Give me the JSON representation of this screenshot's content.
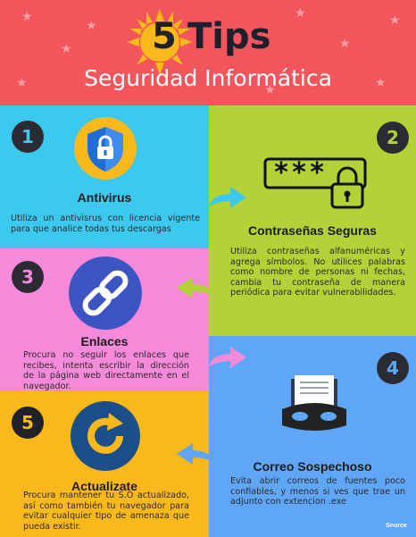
{
  "header": {
    "number": "5",
    "title": "Tips",
    "subtitle": "Seguridad Informática"
  },
  "tips": [
    {
      "number": "1",
      "title": "Antivirus",
      "text": "Utiliza un antivisrus con licencia vigente para que analice todas tus descargas",
      "icon": "shield-lock-icon"
    },
    {
      "number": "2",
      "title": "Contraseñas Seguras",
      "text": "Utiliza contraseñas alfanuméricas y agrega símbolos. No utilices palabras como nombre de personas ni fechas, cambia tu contraseña de manera periódica para evitar vulnerabilidades.",
      "icon": "password-lock-icon",
      "password_mask": "***"
    },
    {
      "number": "3",
      "title": "Enlaces",
      "text": "Procura no seguir los enlaces que recibes, intenta escribir la dirección de la página web directamente en el navegador.",
      "icon": "chain-link-icon"
    },
    {
      "number": "4",
      "title": "Correo Sospechoso",
      "text": "Evita abrir correos de fuentes poco confiables, y menos si ves que trae un adjunto con extencion .exe",
      "icon": "masked-letter-icon"
    },
    {
      "number": "5",
      "title": "Actualizate",
      "text": "Procura mantener tu S.O actualizado, así como también tu navegador para evitar cualquier tipo de amenaza que pueda existir.",
      "icon": "refresh-icon"
    }
  ],
  "footer": {
    "source_label": "Source"
  },
  "colors": {
    "header": "#f2555b",
    "tip1": "#3dc8ee",
    "tip2": "#b2d237",
    "tip3": "#f48ad9",
    "tip4": "#5fa7f6",
    "tip5": "#f9b81c",
    "number_circle": "#2a2b33"
  }
}
